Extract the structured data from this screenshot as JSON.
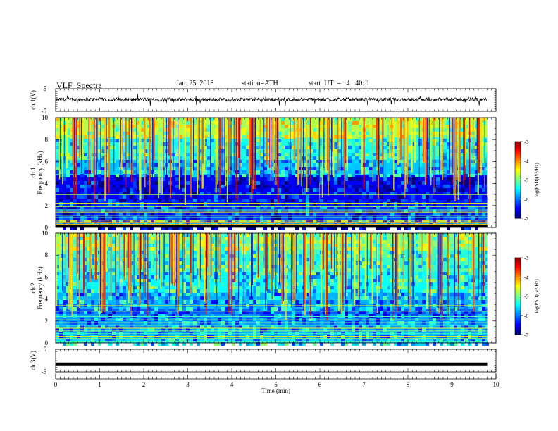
{
  "header": {
    "title": "VLF  Spectra",
    "date": "Jan. 25, 2018",
    "station": "station=ATH",
    "start_ut": "start  UT  =   4  :40: 1"
  },
  "chart_data": [
    {
      "type": "line",
      "ylabel": "ch.1(V)",
      "ylim": [
        -5,
        5
      ],
      "yticks": [
        "5",
        "-5"
      ],
      "x_range_min": [
        0,
        9.8
      ],
      "baseline_v": 0.2,
      "color": "#000000"
    },
    {
      "type": "heatmap",
      "ylabel_1": "ch.1",
      "ylabel_2": "Frequency  (kHz)",
      "ylim": [
        0,
        10
      ],
      "yticks": [
        "0",
        "2",
        "4",
        "6",
        "8",
        "10"
      ],
      "x_range_min": [
        0,
        9.8
      ],
      "colorbar": {
        "label": "log(PSD)(V²/Hz)",
        "range": [
          -7,
          -3
        ],
        "ticks": [
          "-3",
          "-4",
          "-5",
          "-6",
          "-7"
        ]
      }
    },
    {
      "type": "heatmap",
      "ylabel_1": "ch.2",
      "ylabel_2": "Frequency  (kHz)",
      "ylim": [
        0,
        10
      ],
      "yticks": [
        "0",
        "2",
        "4",
        "6",
        "8",
        "10"
      ],
      "x_range_min": [
        0,
        9.8
      ],
      "colorbar": {
        "label": "log(PSD)(V²/Hz)",
        "range": [
          -7,
          -3
        ],
        "ticks": [
          "-3",
          "-4",
          "-5",
          "-6",
          "-7"
        ]
      }
    },
    {
      "type": "line",
      "ylabel": "ch.3(V)",
      "ylim": [
        -5,
        5
      ],
      "yticks": [
        "5",
        "-5"
      ],
      "x_range_min": [
        0,
        9.8
      ],
      "baseline_v": -1.5,
      "color": "#000000"
    }
  ],
  "xaxis": {
    "label": "Time  (min)",
    "ticks": [
      "0",
      "1",
      "2",
      "3",
      "4",
      "5",
      "6",
      "7",
      "8",
      "9",
      "10"
    ],
    "range": [
      0,
      10
    ]
  }
}
